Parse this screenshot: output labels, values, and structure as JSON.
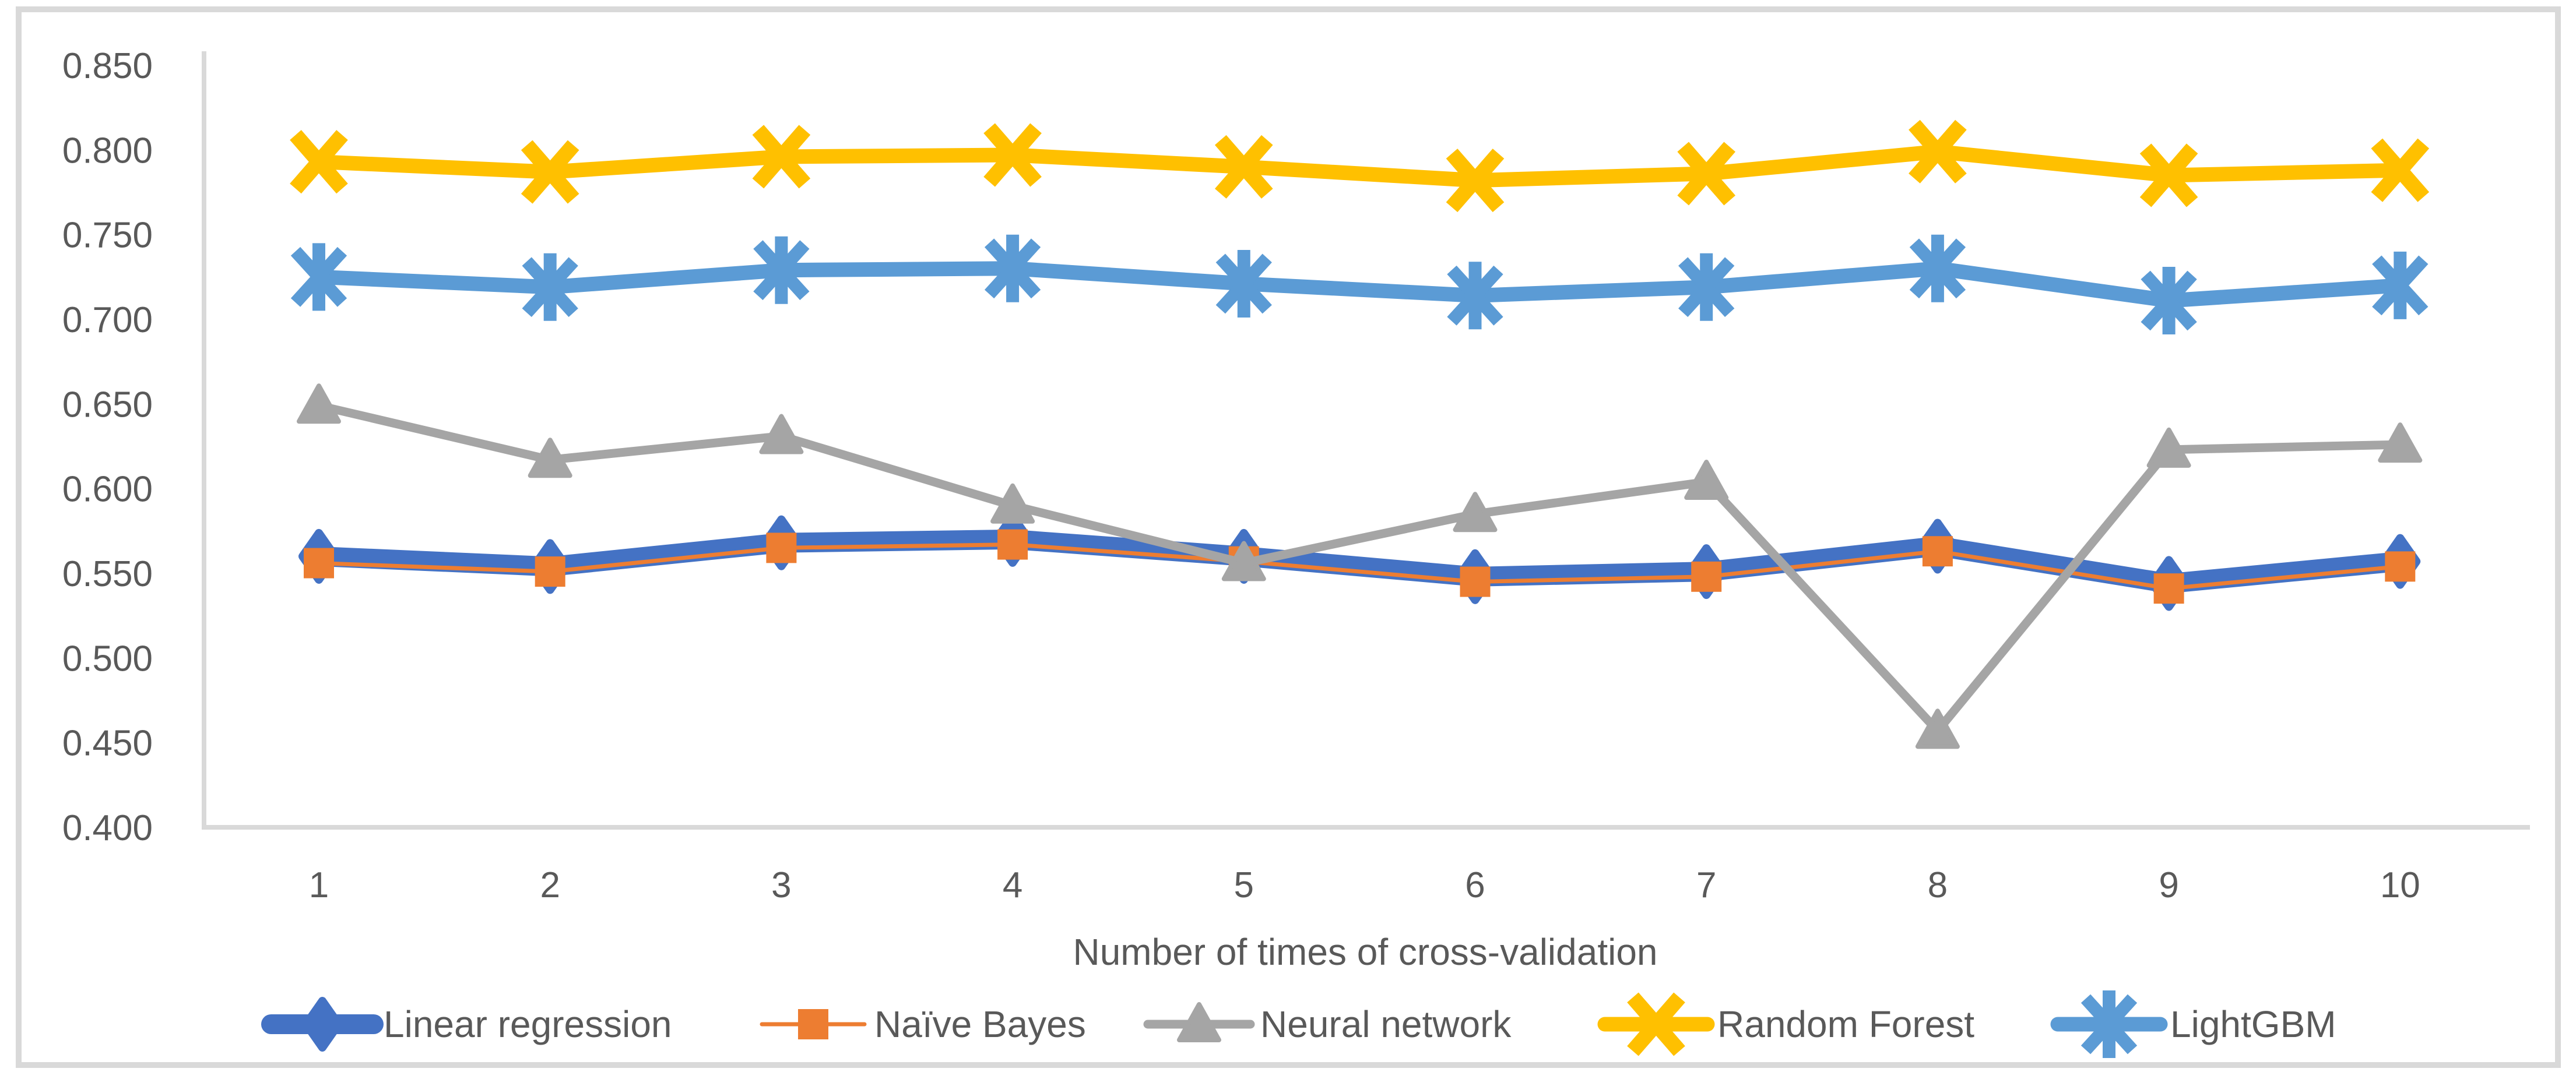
{
  "figure": {
    "background": "#ffffff",
    "border_color": "#d9d9d9"
  },
  "chart_data": {
    "type": "line",
    "title": "",
    "xlabel": "Number of times of cross-validation",
    "ylabel": "",
    "categories": [
      "1",
      "2",
      "3",
      "4",
      "5",
      "6",
      "7",
      "8",
      "9",
      "10"
    ],
    "y_tick_labels": [
      "0.850",
      "0.800",
      "0.750",
      "0.700",
      "0.650",
      "0.600",
      "0.550",
      "0.500",
      "0.450",
      "0.400"
    ],
    "ylim": [
      0.4,
      0.85
    ],
    "ytick_step": 0.05,
    "grid": false,
    "legend_position": "bottom",
    "axis_text_color": "#595959",
    "axis_line_color": "#d9d9d9",
    "series": [
      {
        "name": "Linear regression",
        "color": "#4472C4",
        "marker": "diamond",
        "line_weight": "very-thick",
        "values": [
          0.56,
          0.554,
          0.568,
          0.57,
          0.56,
          0.548,
          0.551,
          0.566,
          0.544,
          0.557
        ]
      },
      {
        "name": "Naïve Bayes",
        "color": "#ED7D31",
        "marker": "square",
        "line_weight": "thin",
        "values": [
          0.556,
          0.551,
          0.565,
          0.567,
          0.557,
          0.545,
          0.548,
          0.563,
          0.541,
          0.554
        ]
      },
      {
        "name": "Neural network",
        "color": "#A5A5A5",
        "marker": "triangle",
        "line_weight": "medium",
        "values": [
          0.649,
          0.617,
          0.631,
          0.59,
          0.556,
          0.585,
          0.604,
          0.457,
          0.623,
          0.626
        ]
      },
      {
        "name": "Random Forest",
        "color": "#FFC000",
        "marker": "x",
        "line_weight": "thick",
        "values": [
          0.793,
          0.787,
          0.796,
          0.797,
          0.79,
          0.782,
          0.786,
          0.799,
          0.785,
          0.788
        ]
      },
      {
        "name": "LightGBM",
        "color": "#5B9BD5",
        "marker": "asterisk",
        "line_weight": "thick",
        "values": [
          0.725,
          0.719,
          0.729,
          0.73,
          0.721,
          0.714,
          0.719,
          0.73,
          0.711,
          0.72
        ]
      }
    ]
  }
}
